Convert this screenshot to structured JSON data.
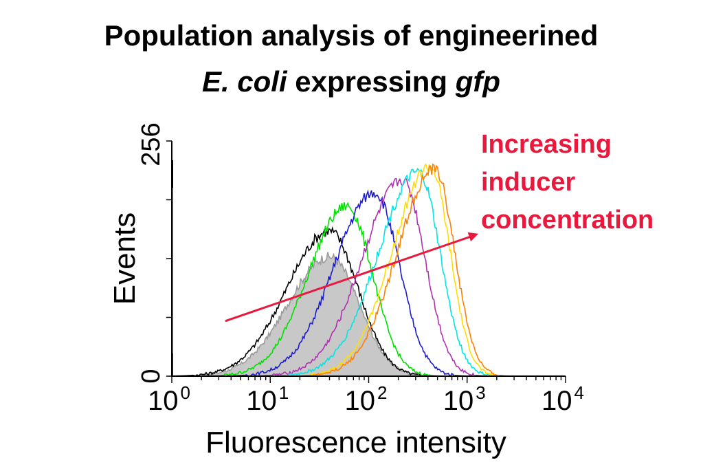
{
  "chart_data": {
    "type": "line",
    "title_line1": "Population analysis of engineerined",
    "title_line2_parts": [
      "E. coli",
      " expressing ",
      "gfp"
    ],
    "xlabel": "Fluorescence intensity",
    "ylabel": "Events",
    "x_scale": "log",
    "xlim": [
      1,
      10000
    ],
    "ylim": [
      0,
      256
    ],
    "x_ticks": [
      {
        "base": "10",
        "exp": "0"
      },
      {
        "base": "10",
        "exp": "1"
      },
      {
        "base": "10",
        "exp": "2"
      },
      {
        "base": "10",
        "exp": "3"
      },
      {
        "base": "10",
        "exp": "4"
      }
    ],
    "y_ticks": [
      "0",
      "256"
    ],
    "grid": false,
    "series": [
      {
        "color": "#9a9a9a",
        "fill": "#c8c8c8",
        "peak_x": 40,
        "peak_y": 130,
        "width": 0.3,
        "skew": 0.45
      },
      {
        "color": "#000000",
        "peak_x": 40,
        "peak_y": 158,
        "width": 0.29,
        "skew": 0.55
      },
      {
        "color": "#00e000",
        "peak_x": 60,
        "peak_y": 185,
        "width": 0.26,
        "skew": 0.55
      },
      {
        "color": "#1a1acc",
        "peak_x": 115,
        "peak_y": 200,
        "width": 0.25,
        "skew": 0.7
      },
      {
        "color": "#b030b0",
        "peak_x": 220,
        "peak_y": 213,
        "width": 0.23,
        "skew": 0.85
      },
      {
        "color": "#00e5e5",
        "peak_x": 320,
        "peak_y": 222,
        "width": 0.22,
        "skew": 0.95
      },
      {
        "color": "#ffdd00",
        "peak_x": 420,
        "peak_y": 228,
        "width": 0.2,
        "skew": 1.0
      },
      {
        "color": "#ff8000",
        "peak_x": 470,
        "peak_y": 225,
        "width": 0.2,
        "skew": 1.0
      }
    ],
    "annotation": {
      "lines": [
        "Increasing",
        "inducer",
        "concentration"
      ],
      "color": "#e8193c",
      "arrow_from": [
        3.5,
        60
      ],
      "arrow_to": [
        1300,
        155
      ]
    }
  }
}
